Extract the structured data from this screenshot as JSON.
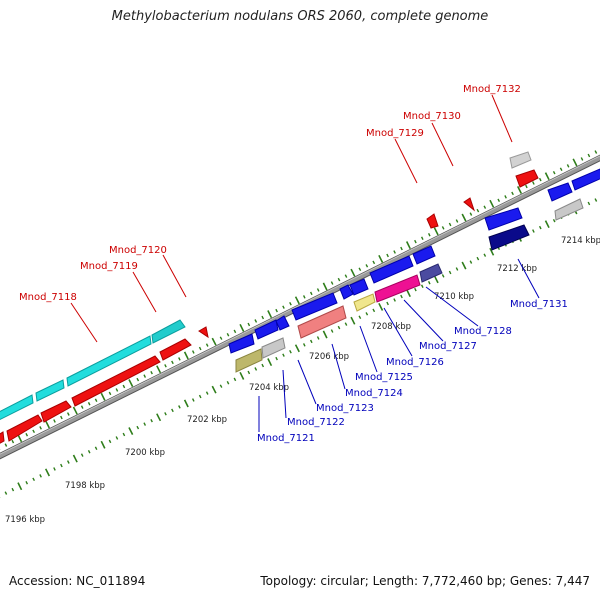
{
  "title": "Methylobacterium nodulans ORS 2060, complete genome",
  "footer": {
    "accession": "Accession: NC_011894",
    "summary": "Topology: circular; Length: 7,772,460 bp; Genes: 7,447"
  },
  "scale_labels": [
    "7196 kbp",
    "7198 kbp",
    "7200 kbp",
    "7202 kbp",
    "7204 kbp",
    "7206 kbp",
    "7208 kbp",
    "7210 kbp",
    "7212 kbp",
    "7214 kbp"
  ],
  "top_genes": [
    "Mnod_7118",
    "Mnod_7119",
    "Mnod_7120",
    "Mnod_7129",
    "Mnod_7130",
    "Mnod_7132"
  ],
  "bottom_genes": [
    "Mnod_7121",
    "Mnod_7122",
    "Mnod_7123",
    "Mnod_7124",
    "Mnod_7125",
    "Mnod_7126",
    "Mnod_7127",
    "Mnod_7128",
    "Mnod_7131"
  ],
  "colors": {
    "backbone": "#8c8c8c",
    "tick": "#2e7d1a",
    "top_label": "#cc0000",
    "bottom_label": "#0000bb",
    "cds": "#ee1111",
    "cds_gray": "#c8c8c8",
    "cyan": "#22dddd",
    "blue": "#1a1aee",
    "navy": "#0a0a8a",
    "olive": "#bdb76b",
    "salmon": "#f08080",
    "pale_yellow": "#f0e68c",
    "magenta": "#ee1193",
    "slate": "#4b4ba0"
  }
}
